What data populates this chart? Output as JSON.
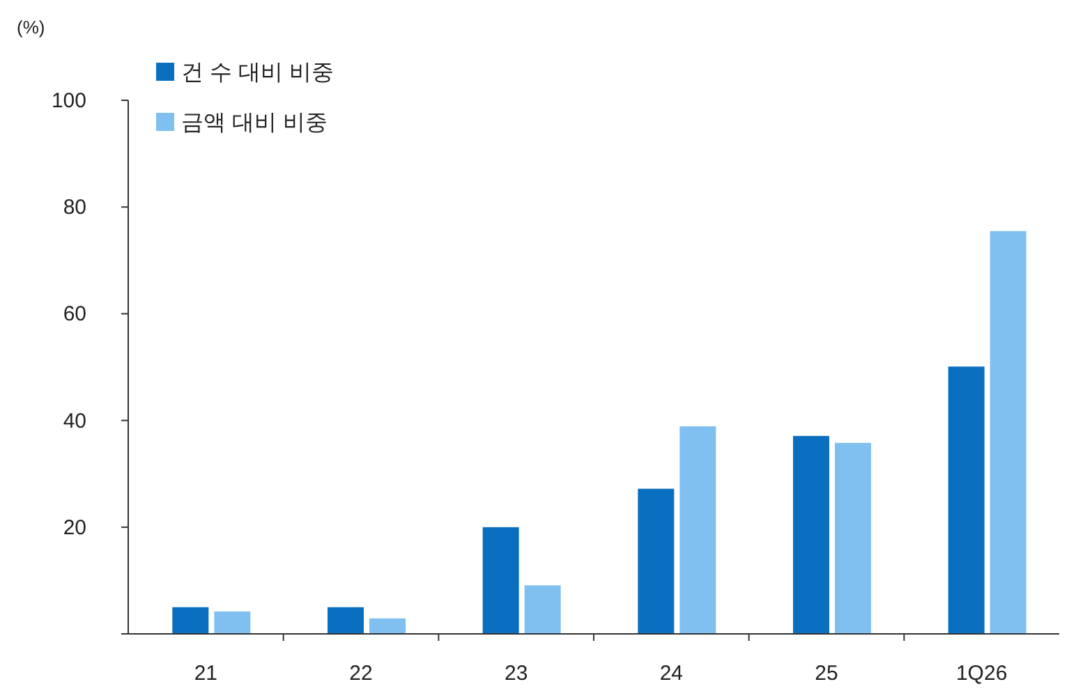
{
  "chart_data": {
    "type": "bar",
    "ylabel": "(%)",
    "categories": [
      "21",
      "22",
      "23",
      "24",
      "25",
      "1Q26"
    ],
    "series": [
      {
        "name": "건 수 대비 비중",
        "color": "#0b6fc0",
        "values": [
          5.0,
          5.0,
          20.0,
          27.2,
          37.1,
          50.1
        ]
      },
      {
        "name": "금액 대비 비중",
        "color": "#80c0f0",
        "values": [
          4.2,
          2.9,
          9.1,
          38.9,
          35.8,
          75.5
        ]
      }
    ],
    "ylim": [
      0,
      100
    ],
    "yticks": [
      {
        "value": 0,
        "label": null
      },
      20,
      40,
      60,
      80,
      100
    ],
    "grid": false,
    "legend": "top left"
  }
}
